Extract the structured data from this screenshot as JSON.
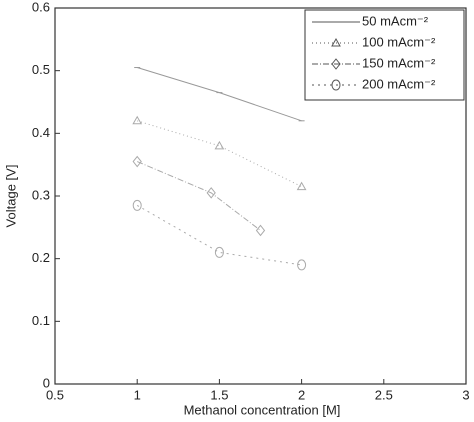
{
  "chart_data": {
    "type": "line",
    "x_label": "Methanol concentration [M]",
    "y_label": "Voltage [V]",
    "xlim": [
      0.5,
      3
    ],
    "xticks": [
      0.5,
      1,
      1.5,
      2,
      2.5,
      3
    ],
    "ylim": [
      0,
      0.6
    ],
    "yticks": [
      0,
      0.1,
      0.2,
      0.3,
      0.4,
      0.5,
      0.6
    ],
    "legend": "upper right",
    "series": [
      {
        "name": "50 mAcm⁻²",
        "color": "#999999",
        "x": [
          1,
          1.5,
          2
        ],
        "values": [
          0.505,
          0.465,
          0.42
        ]
      },
      {
        "name": "100 mAcm⁻²",
        "color": "#aaaaaa",
        "x": [
          1,
          1.5,
          2
        ],
        "values": [
          0.42,
          0.38,
          0.315
        ]
      },
      {
        "name": "150 mAcm⁻²",
        "color": "#aaaaaa",
        "x": [
          1,
          1.45,
          1.75
        ],
        "values": [
          0.355,
          0.305,
          0.245
        ]
      },
      {
        "name": "200 mAcm⁻²",
        "color": "#aaaaaa",
        "x": [
          1,
          1.5,
          2
        ],
        "values": [
          0.285,
          0.21,
          0.19
        ]
      }
    ]
  }
}
